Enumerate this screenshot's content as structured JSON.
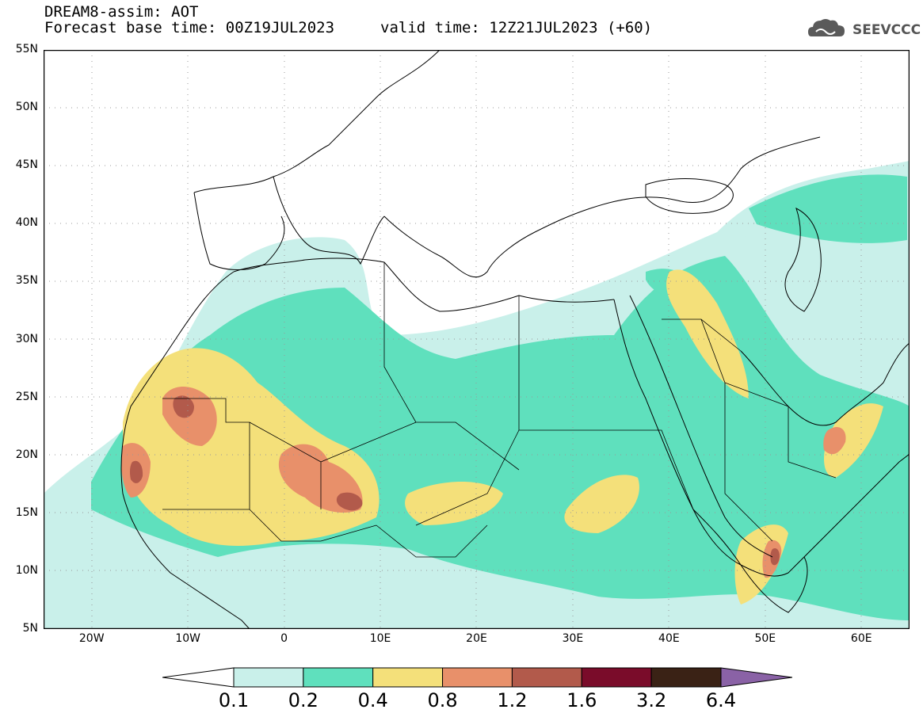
{
  "header": {
    "title_line1": "DREAM8-assim: AOT",
    "title_line2": "Forecast base time: 00Z19JUL2023",
    "valid_time": "valid time: 12Z21JUL2023 (+60)"
  },
  "logo": {
    "text": "SEEVCCC",
    "icon": "cloud-icon"
  },
  "map": {
    "lon_range": [
      -25,
      65
    ],
    "lat_range": [
      5,
      55
    ],
    "y_ticks": [
      "55N",
      "50N",
      "45N",
      "40N",
      "35N",
      "30N",
      "25N",
      "20N",
      "15N",
      "10N",
      "5N"
    ],
    "x_ticks": [
      "20W",
      "10W",
      "0",
      "10E",
      "20E",
      "30E",
      "40E",
      "50E",
      "60E"
    ],
    "field": "Aerosol optical thickness (AOT)"
  },
  "colorbar": {
    "levels": [
      "0.1",
      "0.2",
      "0.4",
      "0.8",
      "1.2",
      "1.6",
      "3.2",
      "6.4"
    ],
    "colors": [
      "#c9f0ea",
      "#5fe0bd",
      "#f4e07a",
      "#e8906a",
      "#b25a4b",
      "#7a0c2a",
      "#3a2215",
      "#8a62a6"
    ]
  }
}
